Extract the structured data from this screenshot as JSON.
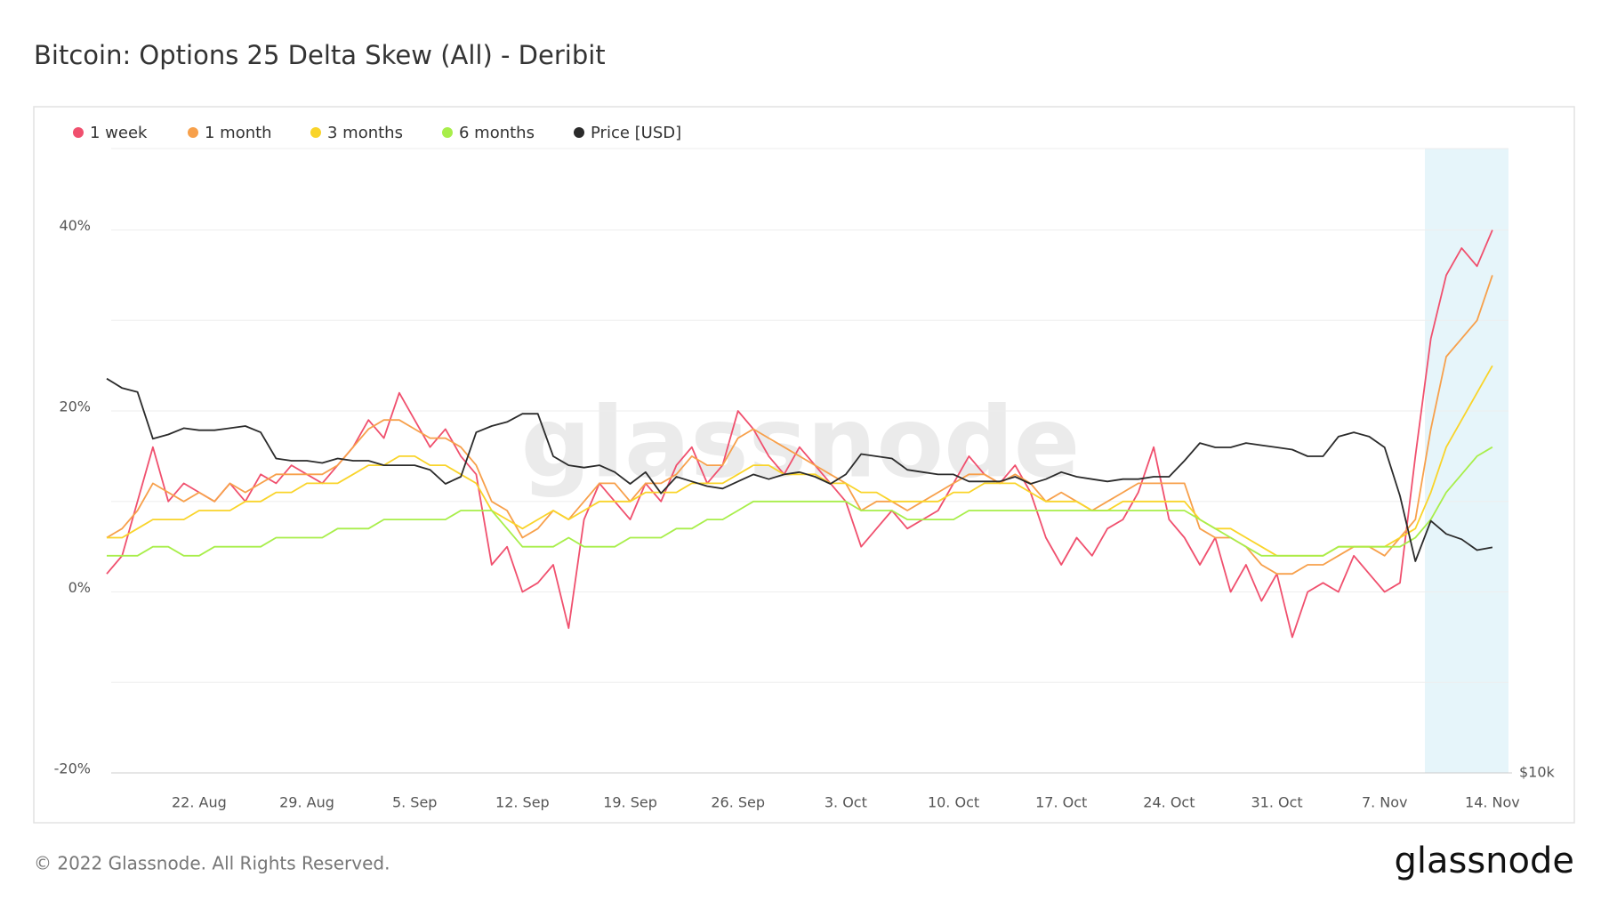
{
  "chart_data": {
    "type": "line",
    "title": "Bitcoin: Options 25 Delta Skew (All) - Deribit",
    "watermark": "glassnode",
    "footer": "© 2022 Glassnode. All Rights Reserved.",
    "logo": "glassnode",
    "categories": [
      null,
      null,
      null,
      null,
      null,
      null,
      "22. Aug",
      null,
      null,
      null,
      null,
      null,
      null,
      "29. Aug",
      null,
      null,
      null,
      null,
      null,
      null,
      "5. Sep",
      null,
      null,
      null,
      null,
      null,
      null,
      "12. Sep",
      null,
      null,
      null,
      null,
      null,
      null,
      "19. Sep",
      null,
      null,
      null,
      null,
      null,
      null,
      "26. Sep",
      null,
      null,
      null,
      null,
      null,
      null,
      "3. Oct",
      null,
      null,
      null,
      null,
      null,
      null,
      "10. Oct",
      null,
      null,
      null,
      null,
      null,
      null,
      "17. Oct",
      null,
      null,
      null,
      null,
      null,
      null,
      "24. Oct",
      null,
      null,
      null,
      null,
      null,
      null,
      "31. Oct",
      null,
      null,
      null,
      null,
      null,
      null,
      "7. Nov",
      null,
      null,
      null,
      null,
      null,
      null,
      "14. Nov"
    ],
    "series": [
      {
        "name": "1 week",
        "color": "#f0506e",
        "values": [
          2,
          4,
          10,
          16,
          10,
          12,
          11,
          10,
          12,
          10,
          13,
          12,
          14,
          13,
          12,
          14,
          16,
          19,
          17,
          22,
          19,
          16,
          18,
          15,
          13,
          3,
          5,
          0,
          1,
          3,
          -4,
          8,
          12,
          10,
          8,
          12,
          10,
          14,
          16,
          12,
          14,
          20,
          18,
          15,
          13,
          16,
          14,
          12,
          10,
          5,
          7,
          9,
          7,
          8,
          9,
          12,
          15,
          13,
          12,
          14,
          11,
          6,
          3,
          6,
          4,
          7,
          8,
          11,
          16,
          8,
          6,
          3,
          6,
          0,
          3,
          -1,
          2,
          -5,
          0,
          1,
          0,
          4,
          2,
          0,
          1,
          15,
          28,
          35,
          38,
          36,
          40
        ]
      },
      {
        "name": "1 month",
        "color": "#f7a04b",
        "values": [
          6,
          7,
          9,
          12,
          11,
          10,
          11,
          10,
          12,
          11,
          12,
          13,
          13,
          13,
          13,
          14,
          16,
          18,
          19,
          19,
          18,
          17,
          17,
          16,
          14,
          10,
          9,
          6,
          7,
          9,
          8,
          10,
          12,
          12,
          10,
          12,
          12,
          13,
          15,
          14,
          14,
          17,
          18,
          17,
          16,
          15,
          14,
          13,
          12,
          9,
          10,
          10,
          9,
          10,
          11,
          12,
          13,
          13,
          12,
          13,
          12,
          10,
          11,
          10,
          9,
          10,
          11,
          12,
          12,
          12,
          12,
          7,
          6,
          6,
          5,
          3,
          2,
          2,
          3,
          3,
          4,
          5,
          5,
          4,
          6,
          8,
          18,
          26,
          28,
          30,
          35
        ]
      },
      {
        "name": "3 months",
        "color": "#f9d42a",
        "values": [
          6,
          6,
          7,
          8,
          8,
          8,
          9,
          9,
          9,
          10,
          10,
          11,
          11,
          12,
          12,
          12,
          13,
          14,
          14,
          15,
          15,
          14,
          14,
          13,
          12,
          9,
          8,
          7,
          8,
          9,
          8,
          9,
          10,
          10,
          10,
          11,
          11,
          11,
          12,
          12,
          12,
          13,
          14,
          14,
          13,
          13,
          13,
          12,
          12,
          11,
          11,
          10,
          10,
          10,
          10,
          11,
          11,
          12,
          12,
          12,
          11,
          10,
          10,
          10,
          9,
          9,
          10,
          10,
          10,
          10,
          10,
          8,
          7,
          7,
          6,
          5,
          4,
          4,
          4,
          4,
          5,
          5,
          5,
          5,
          6,
          7,
          11,
          16,
          19,
          22,
          25
        ]
      },
      {
        "name": "6 months",
        "color": "#a8ee4a",
        "values": [
          4,
          4,
          4,
          5,
          5,
          4,
          4,
          5,
          5,
          5,
          5,
          6,
          6,
          6,
          6,
          7,
          7,
          7,
          8,
          8,
          8,
          8,
          8,
          9,
          9,
          9,
          7,
          5,
          5,
          5,
          6,
          5,
          5,
          5,
          6,
          6,
          6,
          7,
          7,
          8,
          8,
          9,
          10,
          10,
          10,
          10,
          10,
          10,
          10,
          9,
          9,
          9,
          8,
          8,
          8,
          8,
          9,
          9,
          9,
          9,
          9,
          9,
          9,
          9,
          9,
          9,
          9,
          9,
          9,
          9,
          9,
          8,
          7,
          6,
          5,
          4,
          4,
          4,
          4,
          4,
          5,
          5,
          5,
          5,
          5,
          6,
          8,
          11,
          13,
          15,
          16
        ]
      },
      {
        "name": "Price [USD]",
        "color": "#2b2b2b",
        "axis": "y2",
        "values": [
          24000,
          23500,
          23300,
          21000,
          21200,
          21500,
          21400,
          21400,
          21500,
          21600,
          21300,
          20100,
          20000,
          20000,
          19900,
          20100,
          20000,
          20000,
          19800,
          19800,
          19800,
          19600,
          19000,
          19300,
          21300,
          21600,
          21800,
          22200,
          22200,
          20200,
          19800,
          19700,
          19800,
          19500,
          19000,
          19500,
          18600,
          19300,
          19100,
          18900,
          18800,
          19100,
          19400,
          19200,
          19400,
          19500,
          19300,
          19000,
          19400,
          20300,
          20200,
          20100,
          19600,
          19500,
          19400,
          19400,
          19100,
          19100,
          19100,
          19300,
          19000,
          19200,
          19500,
          19300,
          19200,
          19100,
          19200,
          19200,
          19300,
          19300,
          20000,
          20800,
          20600,
          20600,
          20800,
          20700,
          20600,
          20500,
          20200,
          20200,
          21100,
          21300,
          21100,
          20600,
          18500,
          16000,
          17500,
          17000,
          16800,
          16400,
          16500
        ]
      }
    ],
    "ylim": [
      -20,
      49
    ],
    "yticks": [
      {
        "value": -20,
        "label": "-20%"
      },
      {
        "value": 0,
        "label": "0%"
      },
      {
        "value": 20,
        "label": "20%"
      },
      {
        "value": 40,
        "label": "40%"
      }
    ],
    "yminor": [
      -10,
      10,
      30
    ],
    "y2lim": [
      10000,
      40000
    ],
    "y2log": true,
    "y2ticks": [
      {
        "value": 10000,
        "label": "$10k"
      }
    ],
    "grid": true,
    "legend": "top"
  }
}
